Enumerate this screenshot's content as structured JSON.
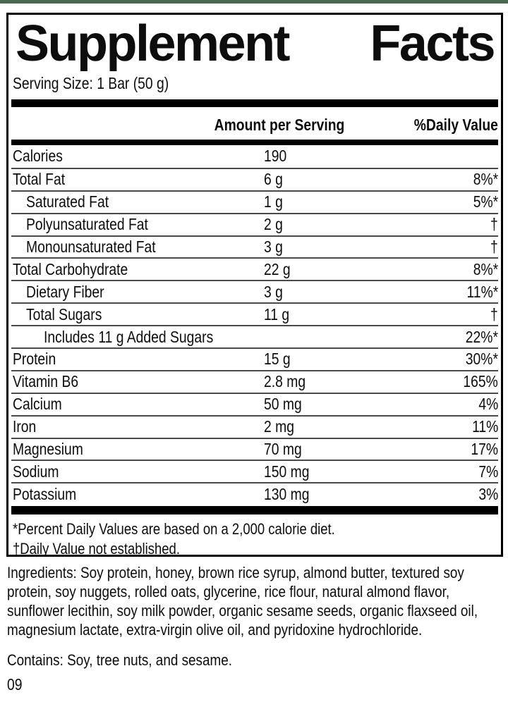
{
  "accent_bar_color": "#4A6B4F",
  "panel": {
    "title_words": [
      "Supplement",
      "Facts"
    ],
    "serving_size": "Serving Size: 1 Bar (50 g)",
    "columns": {
      "amount": "Amount per Serving",
      "daily_value": "%Daily Value"
    },
    "rows": [
      {
        "label": "Calories",
        "indent": 0,
        "amount": "190",
        "dv": ""
      },
      {
        "label": "Total Fat",
        "indent": 0,
        "amount": "6 g",
        "dv": "8%*"
      },
      {
        "label": "Saturated Fat",
        "indent": 1,
        "amount": "1 g",
        "dv": "5%*"
      },
      {
        "label": "Polyunsaturated Fat",
        "indent": 1,
        "amount": "2 g",
        "dv": "†"
      },
      {
        "label": "Monounsaturated Fat",
        "indent": 1,
        "amount": "3 g",
        "dv": "†"
      },
      {
        "label": "Total Carbohydrate",
        "indent": 0,
        "amount": "22 g",
        "dv": "8%*"
      },
      {
        "label": "Dietary Fiber",
        "indent": 1,
        "amount": "3 g",
        "dv": "11%*"
      },
      {
        "label": "Total Sugars",
        "indent": 1,
        "amount": "11 g",
        "dv": "†"
      },
      {
        "label": "Includes 11 g Added Sugars",
        "indent": 2,
        "amount": "",
        "dv": "22%*"
      },
      {
        "label": "Protein",
        "indent": 0,
        "amount": "15 g",
        "dv": "30%*"
      },
      {
        "label": "Vitamin B6",
        "indent": 0,
        "amount": "2.8 mg",
        "dv": "165%"
      },
      {
        "label": "Calcium",
        "indent": 0,
        "amount": "50 mg",
        "dv": "4%"
      },
      {
        "label": "Iron",
        "indent": 0,
        "amount": "2 mg",
        "dv": "11%"
      },
      {
        "label": "Magnesium",
        "indent": 0,
        "amount": "70 mg",
        "dv": "17%"
      },
      {
        "label": "Sodium",
        "indent": 0,
        "amount": "150 mg",
        "dv": "7%"
      },
      {
        "label": "Potassium",
        "indent": 0,
        "amount": "130 mg",
        "dv": "3%"
      }
    ],
    "footnotes": [
      "*Percent Daily Values are based on a 2,000 calorie diet.",
      "†Daily Value not established."
    ]
  },
  "ingredients": "Ingredients: Soy protein, honey, brown rice syrup, almond butter, textured soy protein, soy nuggets, rolled oats, glycerine, rice flour, natural almond flavor, sunflower lecithin, soy milk powder, organic sesame seeds, organic flaxseed oil, magnesium lactate, extra-virgin olive oil, and pyridoxine hydrochloride.",
  "contains": "Contains: Soy, tree nuts, and sesame.",
  "batch_code": "09"
}
